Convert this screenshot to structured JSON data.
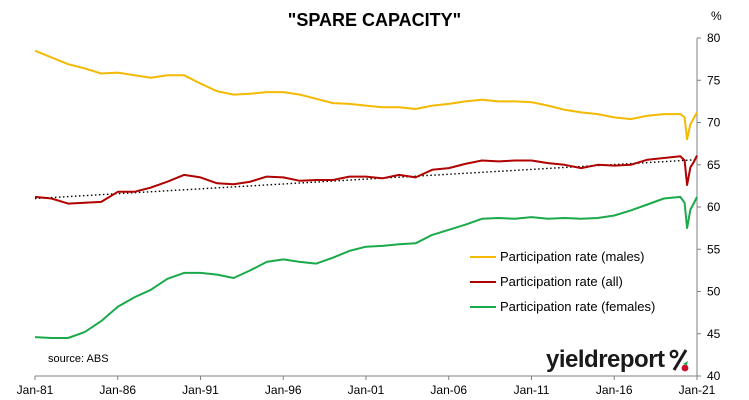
{
  "title": "\"SPARE CAPACITY\"",
  "unit": "%",
  "source": "source: ABS",
  "logo": {
    "text": "yieldreport",
    "symbol": "%"
  },
  "colors": {
    "males": "#f4b900",
    "all": "#b00000",
    "females": "#1aaa4a",
    "trend": "#000000"
  },
  "chart_data": {
    "type": "line",
    "title": "\"SPARE CAPACITY\"",
    "ylabel": "%",
    "ylim": [
      40,
      80
    ],
    "yticks": [
      40,
      45,
      50,
      55,
      60,
      65,
      70,
      75,
      80
    ],
    "xlim": [
      1981.0,
      2021.0
    ],
    "xticks": [
      {
        "x": 1981,
        "label": "Jan-81"
      },
      {
        "x": 1986,
        "label": "Jan-86"
      },
      {
        "x": 1991,
        "label": "Jan-91"
      },
      {
        "x": 1996,
        "label": "Jan-96"
      },
      {
        "x": 2001,
        "label": "Jan-01"
      },
      {
        "x": 2006,
        "label": "Jan-06"
      },
      {
        "x": 2011,
        "label": "Jan-11"
      },
      {
        "x": 2016,
        "label": "Jan-16"
      },
      {
        "x": 2021,
        "label": "Jan-21"
      }
    ],
    "grid": false,
    "y_axis_side": "right",
    "legend_position": "lower-right",
    "series": [
      {
        "name": "Participation rate (males)",
        "color": "#f4b900",
        "points": [
          [
            1981.0,
            78.5
          ],
          [
            1982.0,
            77.7
          ],
          [
            1983.0,
            76.9
          ],
          [
            1984.0,
            76.4
          ],
          [
            1985.0,
            75.8
          ],
          [
            1986.0,
            75.9
          ],
          [
            1987.0,
            75.6
          ],
          [
            1988.0,
            75.3
          ],
          [
            1989.0,
            75.6
          ],
          [
            1990.0,
            75.6
          ],
          [
            1991.0,
            74.6
          ],
          [
            1992.0,
            73.7
          ],
          [
            1993.0,
            73.3
          ],
          [
            1994.0,
            73.4
          ],
          [
            1995.0,
            73.6
          ],
          [
            1996.0,
            73.6
          ],
          [
            1997.0,
            73.3
          ],
          [
            1998.0,
            72.8
          ],
          [
            1999.0,
            72.3
          ],
          [
            2000.0,
            72.2
          ],
          [
            2001.0,
            72.0
          ],
          [
            2002.0,
            71.8
          ],
          [
            2003.0,
            71.8
          ],
          [
            2004.0,
            71.6
          ],
          [
            2005.0,
            72.0
          ],
          [
            2006.0,
            72.2
          ],
          [
            2007.0,
            72.5
          ],
          [
            2008.0,
            72.7
          ],
          [
            2009.0,
            72.5
          ],
          [
            2010.0,
            72.5
          ],
          [
            2011.0,
            72.4
          ],
          [
            2012.0,
            72.0
          ],
          [
            2013.0,
            71.5
          ],
          [
            2014.0,
            71.2
          ],
          [
            2015.0,
            71.0
          ],
          [
            2016.0,
            70.6
          ],
          [
            2017.0,
            70.4
          ],
          [
            2018.0,
            70.8
          ],
          [
            2019.0,
            71.0
          ],
          [
            2020.0,
            71.0
          ],
          [
            2020.25,
            70.6
          ],
          [
            2020.4,
            68.0
          ],
          [
            2020.6,
            69.8
          ],
          [
            2020.8,
            70.5
          ],
          [
            2021.0,
            71.2
          ]
        ]
      },
      {
        "name": "Participation rate (all)",
        "color": "#b00000",
        "points": [
          [
            1981.0,
            61.2
          ],
          [
            1982.0,
            61.0
          ],
          [
            1983.0,
            60.4
          ],
          [
            1984.0,
            60.5
          ],
          [
            1985.0,
            60.6
          ],
          [
            1986.0,
            61.8
          ],
          [
            1987.0,
            61.8
          ],
          [
            1988.0,
            62.3
          ],
          [
            1989.0,
            63.0
          ],
          [
            1990.0,
            63.8
          ],
          [
            1991.0,
            63.5
          ],
          [
            1992.0,
            62.8
          ],
          [
            1993.0,
            62.7
          ],
          [
            1994.0,
            63.0
          ],
          [
            1995.0,
            63.6
          ],
          [
            1996.0,
            63.5
          ],
          [
            1997.0,
            63.1
          ],
          [
            1998.0,
            63.2
          ],
          [
            1999.0,
            63.2
          ],
          [
            2000.0,
            63.6
          ],
          [
            2001.0,
            63.6
          ],
          [
            2002.0,
            63.4
          ],
          [
            2003.0,
            63.8
          ],
          [
            2004.0,
            63.5
          ],
          [
            2005.0,
            64.4
          ],
          [
            2006.0,
            64.6
          ],
          [
            2007.0,
            65.1
          ],
          [
            2008.0,
            65.5
          ],
          [
            2009.0,
            65.4
          ],
          [
            2010.0,
            65.5
          ],
          [
            2011.0,
            65.5
          ],
          [
            2012.0,
            65.2
          ],
          [
            2013.0,
            65.0
          ],
          [
            2014.0,
            64.6
          ],
          [
            2015.0,
            65.0
          ],
          [
            2016.0,
            64.9
          ],
          [
            2017.0,
            65.0
          ],
          [
            2018.0,
            65.6
          ],
          [
            2019.0,
            65.8
          ],
          [
            2020.0,
            66.0
          ],
          [
            2020.25,
            65.5
          ],
          [
            2020.4,
            62.6
          ],
          [
            2020.6,
            64.7
          ],
          [
            2020.8,
            65.3
          ],
          [
            2021.0,
            66.1
          ]
        ]
      },
      {
        "name": "Participation rate (females)",
        "color": "#1aaa4a",
        "points": [
          [
            1981.0,
            44.6
          ],
          [
            1982.0,
            44.5
          ],
          [
            1983.0,
            44.5
          ],
          [
            1984.0,
            45.2
          ],
          [
            1985.0,
            46.5
          ],
          [
            1986.0,
            48.2
          ],
          [
            1987.0,
            49.3
          ],
          [
            1988.0,
            50.2
          ],
          [
            1989.0,
            51.5
          ],
          [
            1990.0,
            52.2
          ],
          [
            1991.0,
            52.2
          ],
          [
            1992.0,
            52.0
          ],
          [
            1993.0,
            51.6
          ],
          [
            1994.0,
            52.5
          ],
          [
            1995.0,
            53.5
          ],
          [
            1996.0,
            53.8
          ],
          [
            1997.0,
            53.5
          ],
          [
            1998.0,
            53.3
          ],
          [
            1999.0,
            54.0
          ],
          [
            2000.0,
            54.8
          ],
          [
            2001.0,
            55.3
          ],
          [
            2002.0,
            55.4
          ],
          [
            2003.0,
            55.6
          ],
          [
            2004.0,
            55.7
          ],
          [
            2005.0,
            56.7
          ],
          [
            2006.0,
            57.3
          ],
          [
            2007.0,
            57.9
          ],
          [
            2008.0,
            58.6
          ],
          [
            2009.0,
            58.7
          ],
          [
            2010.0,
            58.6
          ],
          [
            2011.0,
            58.8
          ],
          [
            2012.0,
            58.6
          ],
          [
            2013.0,
            58.7
          ],
          [
            2014.0,
            58.6
          ],
          [
            2015.0,
            58.7
          ],
          [
            2016.0,
            59.0
          ],
          [
            2017.0,
            59.6
          ],
          [
            2018.0,
            60.3
          ],
          [
            2019.0,
            61.0
          ],
          [
            2020.0,
            61.2
          ],
          [
            2020.25,
            60.5
          ],
          [
            2020.4,
            57.5
          ],
          [
            2020.6,
            59.7
          ],
          [
            2020.8,
            60.4
          ],
          [
            2021.0,
            61.2
          ]
        ]
      }
    ],
    "trendline": {
      "color": "#000000",
      "style": "dotted",
      "points": [
        [
          1981.0,
          61.0
        ],
        [
          2021.0,
          65.6
        ]
      ]
    }
  }
}
